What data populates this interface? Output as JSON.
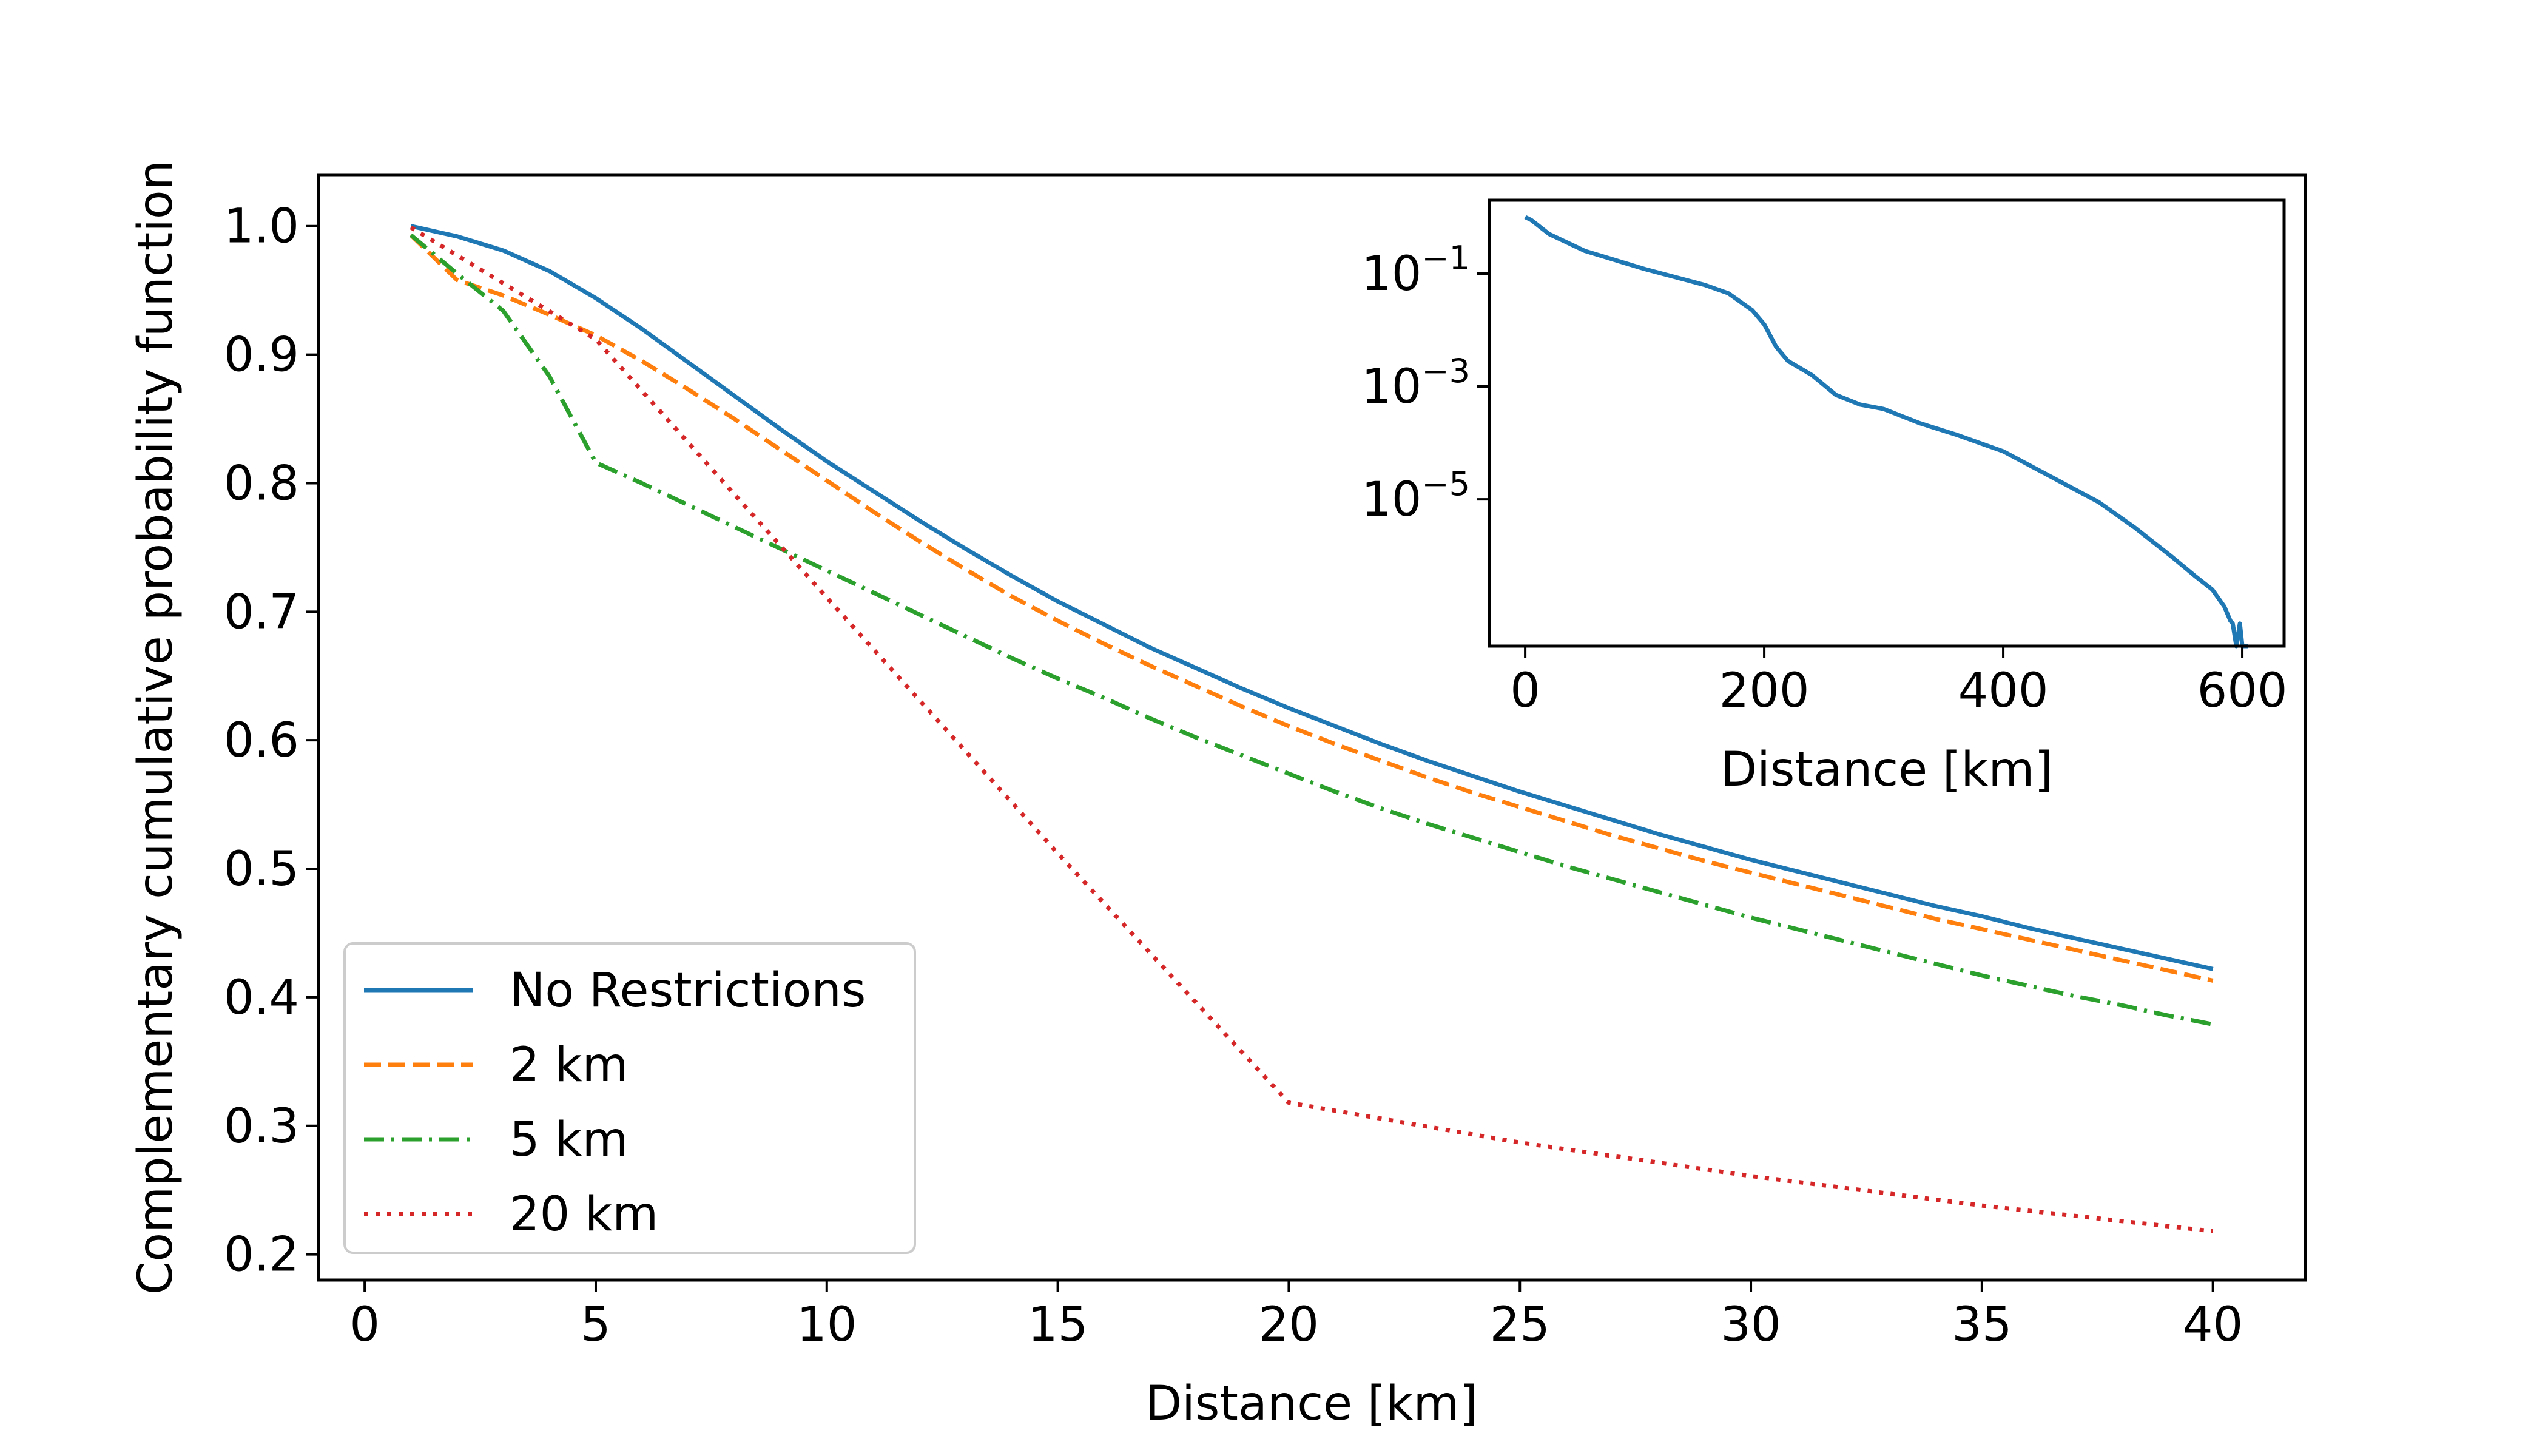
{
  "chart_data": [
    {
      "type": "line",
      "xlabel": "Distance [km]",
      "ylabel": "Complementary cumulative probability function",
      "xlim": [
        -1,
        42
      ],
      "ylim": [
        0.18,
        1.04
      ],
      "xticks": [
        0,
        5,
        10,
        15,
        20,
        25,
        30,
        35,
        40
      ],
      "xtick_labels": [
        "0",
        "5",
        "10",
        "15",
        "20",
        "25",
        "30",
        "35",
        "40"
      ],
      "yticks": [
        0.2,
        0.3,
        0.4,
        0.5,
        0.6,
        0.7,
        0.8,
        0.9,
        1.0
      ],
      "ytick_labels": [
        "0.2",
        "0.3",
        "0.4",
        "0.5",
        "0.6",
        "0.7",
        "0.8",
        "0.9",
        "1.0"
      ],
      "grid": false,
      "legend": "lower-left",
      "series": [
        {
          "name": "No Restrictions",
          "color": "#1f77b4",
          "style": "solid",
          "x": [
            1,
            2,
            3,
            4,
            5,
            6,
            7,
            8,
            9,
            10,
            11,
            12,
            13,
            14,
            15,
            16,
            17,
            18,
            19,
            20,
            21,
            22,
            23,
            24,
            25,
            26,
            27,
            28,
            29,
            30,
            31,
            32,
            33,
            34,
            35,
            36,
            37,
            38,
            39,
            40
          ],
          "y": [
            1.0,
            0.992,
            0.981,
            0.965,
            0.944,
            0.92,
            0.894,
            0.868,
            0.842,
            0.817,
            0.794,
            0.771,
            0.749,
            0.728,
            0.708,
            0.69,
            0.672,
            0.656,
            0.64,
            0.625,
            0.611,
            0.597,
            0.584,
            0.572,
            0.56,
            0.549,
            0.538,
            0.527,
            0.517,
            0.507,
            0.498,
            0.489,
            0.48,
            0.471,
            0.463,
            0.454,
            0.446,
            0.438,
            0.43,
            0.422
          ]
        },
        {
          "name": "2 km",
          "color": "#ff7f0e",
          "style": "dashed",
          "x": [
            1,
            2,
            3,
            4,
            5,
            6,
            7,
            8,
            9,
            10,
            11,
            12,
            13,
            14,
            15,
            16,
            17,
            18,
            19,
            20,
            21,
            22,
            23,
            24,
            25,
            26,
            27,
            28,
            29,
            30,
            31,
            32,
            33,
            34,
            35,
            36,
            37,
            38,
            39,
            40
          ],
          "y": [
            0.993,
            0.958,
            0.946,
            0.931,
            0.915,
            0.895,
            0.873,
            0.85,
            0.826,
            0.802,
            0.778,
            0.755,
            0.733,
            0.712,
            0.693,
            0.675,
            0.658,
            0.642,
            0.626,
            0.611,
            0.597,
            0.584,
            0.571,
            0.559,
            0.548,
            0.537,
            0.526,
            0.516,
            0.506,
            0.497,
            0.488,
            0.479,
            0.47,
            0.461,
            0.453,
            0.445,
            0.437,
            0.429,
            0.421,
            0.413
          ]
        },
        {
          "name": "5 km",
          "color": "#2ca02c",
          "style": "dashdot",
          "x": [
            1,
            2,
            3,
            4,
            5,
            6,
            7,
            8,
            9,
            10,
            11,
            12,
            13,
            14,
            15,
            16,
            17,
            18,
            19,
            20,
            21,
            22,
            23,
            24,
            25,
            26,
            27,
            28,
            29,
            30,
            31,
            32,
            33,
            34,
            35,
            36,
            37,
            38,
            39,
            40
          ],
          "y": [
            0.993,
            0.963,
            0.934,
            0.883,
            0.816,
            0.8,
            0.783,
            0.766,
            0.749,
            0.732,
            0.715,
            0.698,
            0.681,
            0.664,
            0.648,
            0.633,
            0.617,
            0.602,
            0.588,
            0.574,
            0.56,
            0.547,
            0.535,
            0.524,
            0.513,
            0.502,
            0.492,
            0.482,
            0.472,
            0.462,
            0.453,
            0.444,
            0.435,
            0.426,
            0.417,
            0.409,
            0.401,
            0.394,
            0.386,
            0.379
          ]
        },
        {
          "name": "20 km",
          "color": "#d62728",
          "style": "dotted",
          "x": [
            1,
            5,
            10,
            15,
            20,
            25,
            30,
            35,
            40
          ],
          "y": [
            0.999,
            0.912,
            0.711,
            0.512,
            0.318,
            0.287,
            0.261,
            0.238,
            0.218
          ]
        }
      ]
    },
    {
      "type": "line",
      "xlabel": "Distance [km]",
      "ylabel": "",
      "log_y": true,
      "xlim": [
        -30,
        635
      ],
      "ylim_exponent": [
        -7.6,
        0.3
      ],
      "xticks": [
        0,
        200,
        400,
        600
      ],
      "xtick_labels": [
        "0",
        "200",
        "400",
        "600"
      ],
      "yticks_exponent": [
        -1,
        -3,
        -5
      ],
      "ytick_base": "10",
      "ytick_exponent_labels": [
        "−1",
        "−3",
        "−5"
      ],
      "grid": false,
      "series": [
        {
          "color": "#1f77b4",
          "style": "solid",
          "x": [
            0,
            5,
            20,
            50,
            100,
            150,
            170,
            190,
            200,
            210,
            220,
            240,
            260,
            280,
            300,
            330,
            360,
            400,
            440,
            480,
            510,
            540,
            560,
            575,
            585,
            590,
            592,
            595,
            598,
            600,
            605
          ],
          "y_exponent": [
            0.0,
            -0.05,
            -0.3,
            -0.6,
            -0.92,
            -1.2,
            -1.35,
            -1.65,
            -1.9,
            -2.3,
            -2.55,
            -2.8,
            -3.15,
            -3.32,
            -3.4,
            -3.65,
            -3.85,
            -4.15,
            -4.6,
            -5.05,
            -5.5,
            -6.0,
            -6.35,
            -6.6,
            -6.9,
            -7.15,
            -7.2,
            -7.6,
            -7.2,
            -7.6,
            -7.6
          ]
        }
      ]
    }
  ]
}
